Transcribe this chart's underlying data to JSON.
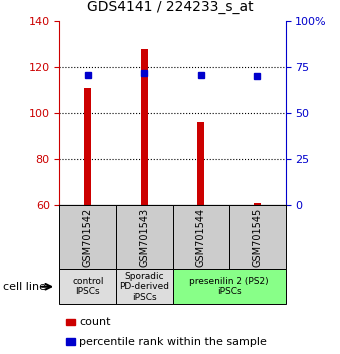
{
  "title": "GDS4141 / 224233_s_at",
  "samples": [
    "GSM701542",
    "GSM701543",
    "GSM701544",
    "GSM701545"
  ],
  "counts": [
    111,
    128,
    96,
    61
  ],
  "percentiles": [
    71,
    72,
    71,
    70
  ],
  "ylim_left": [
    60,
    140
  ],
  "ylim_right": [
    0,
    100
  ],
  "yticks_left": [
    60,
    80,
    100,
    120,
    140
  ],
  "yticks_right": [
    0,
    25,
    50,
    75,
    100
  ],
  "ytick_labels_right": [
    "0",
    "25",
    "50",
    "75",
    "100%"
  ],
  "grid_lines": [
    80,
    100,
    120
  ],
  "bar_color": "#cc0000",
  "marker_color": "#0000cc",
  "marker_size": 5,
  "groups": [
    {
      "label": "control\nIPSCs",
      "span": [
        0,
        1
      ],
      "color": "#dddddd"
    },
    {
      "label": "Sporadic\nPD-derived\niPSCs",
      "span": [
        1,
        2
      ],
      "color": "#dddddd"
    },
    {
      "label": "presenilin 2 (PS2)\niPSCs",
      "span": [
        2,
        4
      ],
      "color": "#88ff88"
    }
  ],
  "cell_line_label": "cell line",
  "legend_count_label": "count",
  "legend_percentile_label": "percentile rank within the sample",
  "left_tick_color": "#cc0000",
  "right_tick_color": "#0000cc",
  "sample_box_color": "#cccccc",
  "bar_width": 0.12
}
